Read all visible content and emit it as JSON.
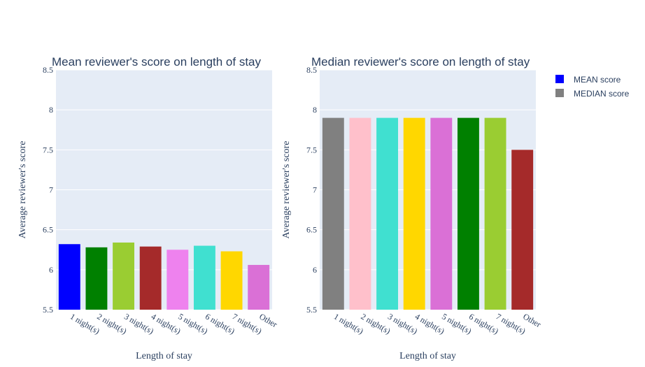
{
  "chart_data": [
    {
      "type": "bar",
      "title": "Mean reviewer's score on length of stay",
      "xlabel": "Length of stay",
      "ylabel": "Average reviewer's score",
      "ylim": [
        5.5,
        8.5
      ],
      "yticks": [
        "5.5",
        "6",
        "6.5",
        "7",
        "7.5",
        "8",
        "8.5"
      ],
      "categories": [
        "1 night(s)",
        "2 night(s)",
        "3 night(s)",
        "4 night(s)",
        "5 night(s)",
        "6 night(s)",
        "7 night(s)",
        "Other"
      ],
      "values": [
        6.32,
        6.28,
        6.34,
        6.29,
        6.25,
        6.3,
        6.23,
        6.06
      ],
      "colors": [
        "#0000ff",
        "#008000",
        "#9acd32",
        "#a52a2a",
        "#ee82ee",
        "#40e0d0",
        "#ffd700",
        "#da70d6"
      ],
      "grid": true
    },
    {
      "type": "bar",
      "title": "Median reviewer's score on length of stay",
      "xlabel": "Length of stay",
      "ylabel": "Average reviewer's score",
      "ylim": [
        5.5,
        8.5
      ],
      "yticks": [
        "5.5",
        "6",
        "6.5",
        "7",
        "7.5",
        "8",
        "8.5"
      ],
      "categories": [
        "1 night(s)",
        "2 night(s)",
        "3 night(s)",
        "4 night(s)",
        "5 night(s)",
        "6 night(s)",
        "7 night(s)",
        "Other"
      ],
      "values": [
        7.9,
        7.9,
        7.9,
        7.9,
        7.9,
        7.9,
        7.9,
        7.5
      ],
      "colors": [
        "#808080",
        "#ffc0cb",
        "#40e0d0",
        "#ffd700",
        "#da70d6",
        "#008000",
        "#9acd32",
        "#a52a2a"
      ],
      "grid": true
    }
  ],
  "legend": {
    "position": "top-right",
    "items": [
      {
        "label": "MEAN score",
        "color": "#0000ff"
      },
      {
        "label": "MEDIAN score",
        "color": "#808080"
      }
    ]
  }
}
